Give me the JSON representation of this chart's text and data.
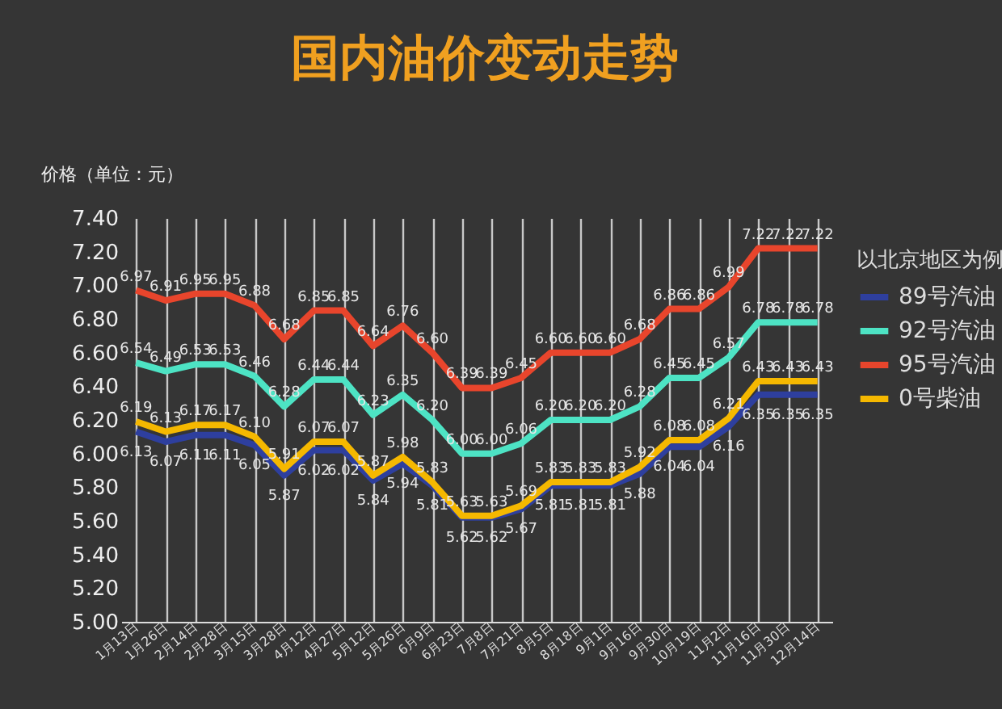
{
  "chart_data": {
    "type": "line",
    "title": "国内油价变动走势",
    "ylabel": "价格（单位：元）",
    "legend_title": "以北京地区为例",
    "categories": [
      "1月13日",
      "1月26日",
      "2月14日",
      "2月28日",
      "3月15日",
      "3月28日",
      "4月12日",
      "4月27日",
      "5月12日",
      "5月26日",
      "6月9日",
      "6月23日",
      "7月8日",
      "7月21日",
      "8月5日",
      "8月18日",
      "9月1日",
      "9月16日",
      "9月30日",
      "10月19日",
      "11月2日",
      "11月16日",
      "11月30日",
      "12月14日"
    ],
    "series": [
      {
        "name": "89号汽油",
        "color": "#2e3f9e",
        "values": [
          6.13,
          6.07,
          6.11,
          6.11,
          6.05,
          5.87,
          6.02,
          6.02,
          5.84,
          5.94,
          5.81,
          5.62,
          5.62,
          5.67,
          5.81,
          5.81,
          5.81,
          5.88,
          6.04,
          6.04,
          6.16,
          6.35,
          6.35,
          6.35
        ],
        "value_labels": [
          "6.13",
          "6.07",
          "6.11",
          "6.11",
          "6.05",
          "5.87",
          "6.02",
          "6.02",
          "5.84",
          "5.94",
          "5.81",
          "5.62",
          "5.62",
          "5.67",
          "5.81",
          "5.81",
          "5.81",
          "5.88",
          "6.04",
          "6.04",
          "6.16",
          "6.35",
          "6.35",
          "6.35"
        ]
      },
      {
        "name": "92号汽油",
        "color": "#4de3c4",
        "values": [
          6.54,
          6.49,
          6.53,
          6.53,
          6.46,
          6.28,
          6.44,
          6.44,
          6.23,
          6.35,
          6.2,
          6.0,
          6.0,
          6.06,
          6.2,
          6.2,
          6.2,
          6.28,
          6.45,
          6.45,
          6.57,
          6.78,
          6.78,
          6.78
        ],
        "value_labels": [
          "6.54",
          "6.49",
          "6.53",
          "6.53",
          "6.46",
          "6.28",
          "6.44",
          "6.44",
          "6.23",
          "6.35",
          "6.20",
          "6.00",
          "6.00",
          "6.06",
          "6.20",
          "6.20",
          "6.20",
          "6.28",
          "6.45",
          "6.45",
          "6.57",
          "6.78",
          "6.78",
          "6.78"
        ]
      },
      {
        "name": "95号汽油",
        "color": "#e8452c",
        "values": [
          6.97,
          6.91,
          6.95,
          6.95,
          6.88,
          6.68,
          6.85,
          6.85,
          6.64,
          6.76,
          6.6,
          6.39,
          6.39,
          6.45,
          6.6,
          6.6,
          6.6,
          6.68,
          6.86,
          6.86,
          6.99,
          7.22,
          7.22,
          7.22
        ],
        "value_labels": [
          "6.97",
          "6.91",
          "6.95",
          "6.95",
          "6.88",
          "6.68",
          "6.85",
          "6.85",
          "6.64",
          "6.76",
          "6.60",
          "6.39",
          "6.39",
          "6.45",
          "6.60",
          "6.60",
          "6.60",
          "6.68",
          "6.86",
          "6.86",
          "6.99",
          "7.22",
          "7.22",
          "7.22"
        ]
      },
      {
        "name": "0号柴油",
        "color": "#f5b800",
        "values": [
          6.19,
          6.13,
          6.17,
          6.17,
          6.1,
          5.91,
          6.07,
          6.07,
          5.87,
          5.98,
          5.83,
          5.63,
          5.63,
          5.69,
          5.83,
          5.83,
          5.83,
          5.92,
          6.08,
          6.08,
          6.21,
          6.43,
          6.43,
          6.43
        ],
        "value_labels": [
          "6.19",
          "6.13",
          "6.17",
          "6.17",
          "6.10",
          "5.91",
          "6.07",
          "6.07",
          "5.87",
          "5.98",
          "5.83",
          "5.63",
          "5.63",
          "5.69",
          "5.83",
          "5.83",
          "5.83",
          "5.92",
          "6.08",
          "6.08",
          "6.21",
          "6.43",
          "6.43",
          "6.43"
        ]
      }
    ],
    "ylim": [
      5.0,
      7.4
    ],
    "yticks": [
      {
        "value": 5.0,
        "label": "5.00"
      },
      {
        "value": 5.2,
        "label": "5.20"
      },
      {
        "value": 5.4,
        "label": "5.40"
      },
      {
        "value": 5.6,
        "label": "5.60"
      },
      {
        "value": 5.8,
        "label": "5.80"
      },
      {
        "value": 6.0,
        "label": "6.00"
      },
      {
        "value": 6.2,
        "label": "6.20"
      },
      {
        "value": 6.4,
        "label": "6.40"
      },
      {
        "value": 6.6,
        "label": "6.60"
      },
      {
        "value": 6.8,
        "label": "6.80"
      },
      {
        "value": 7.0,
        "label": "7.00"
      },
      {
        "value": 7.2,
        "label": "7.20"
      },
      {
        "value": 7.4,
        "label": "7.40"
      }
    ],
    "grid": "x",
    "legend": "right",
    "marker": "none",
    "line_style": "solid"
  }
}
